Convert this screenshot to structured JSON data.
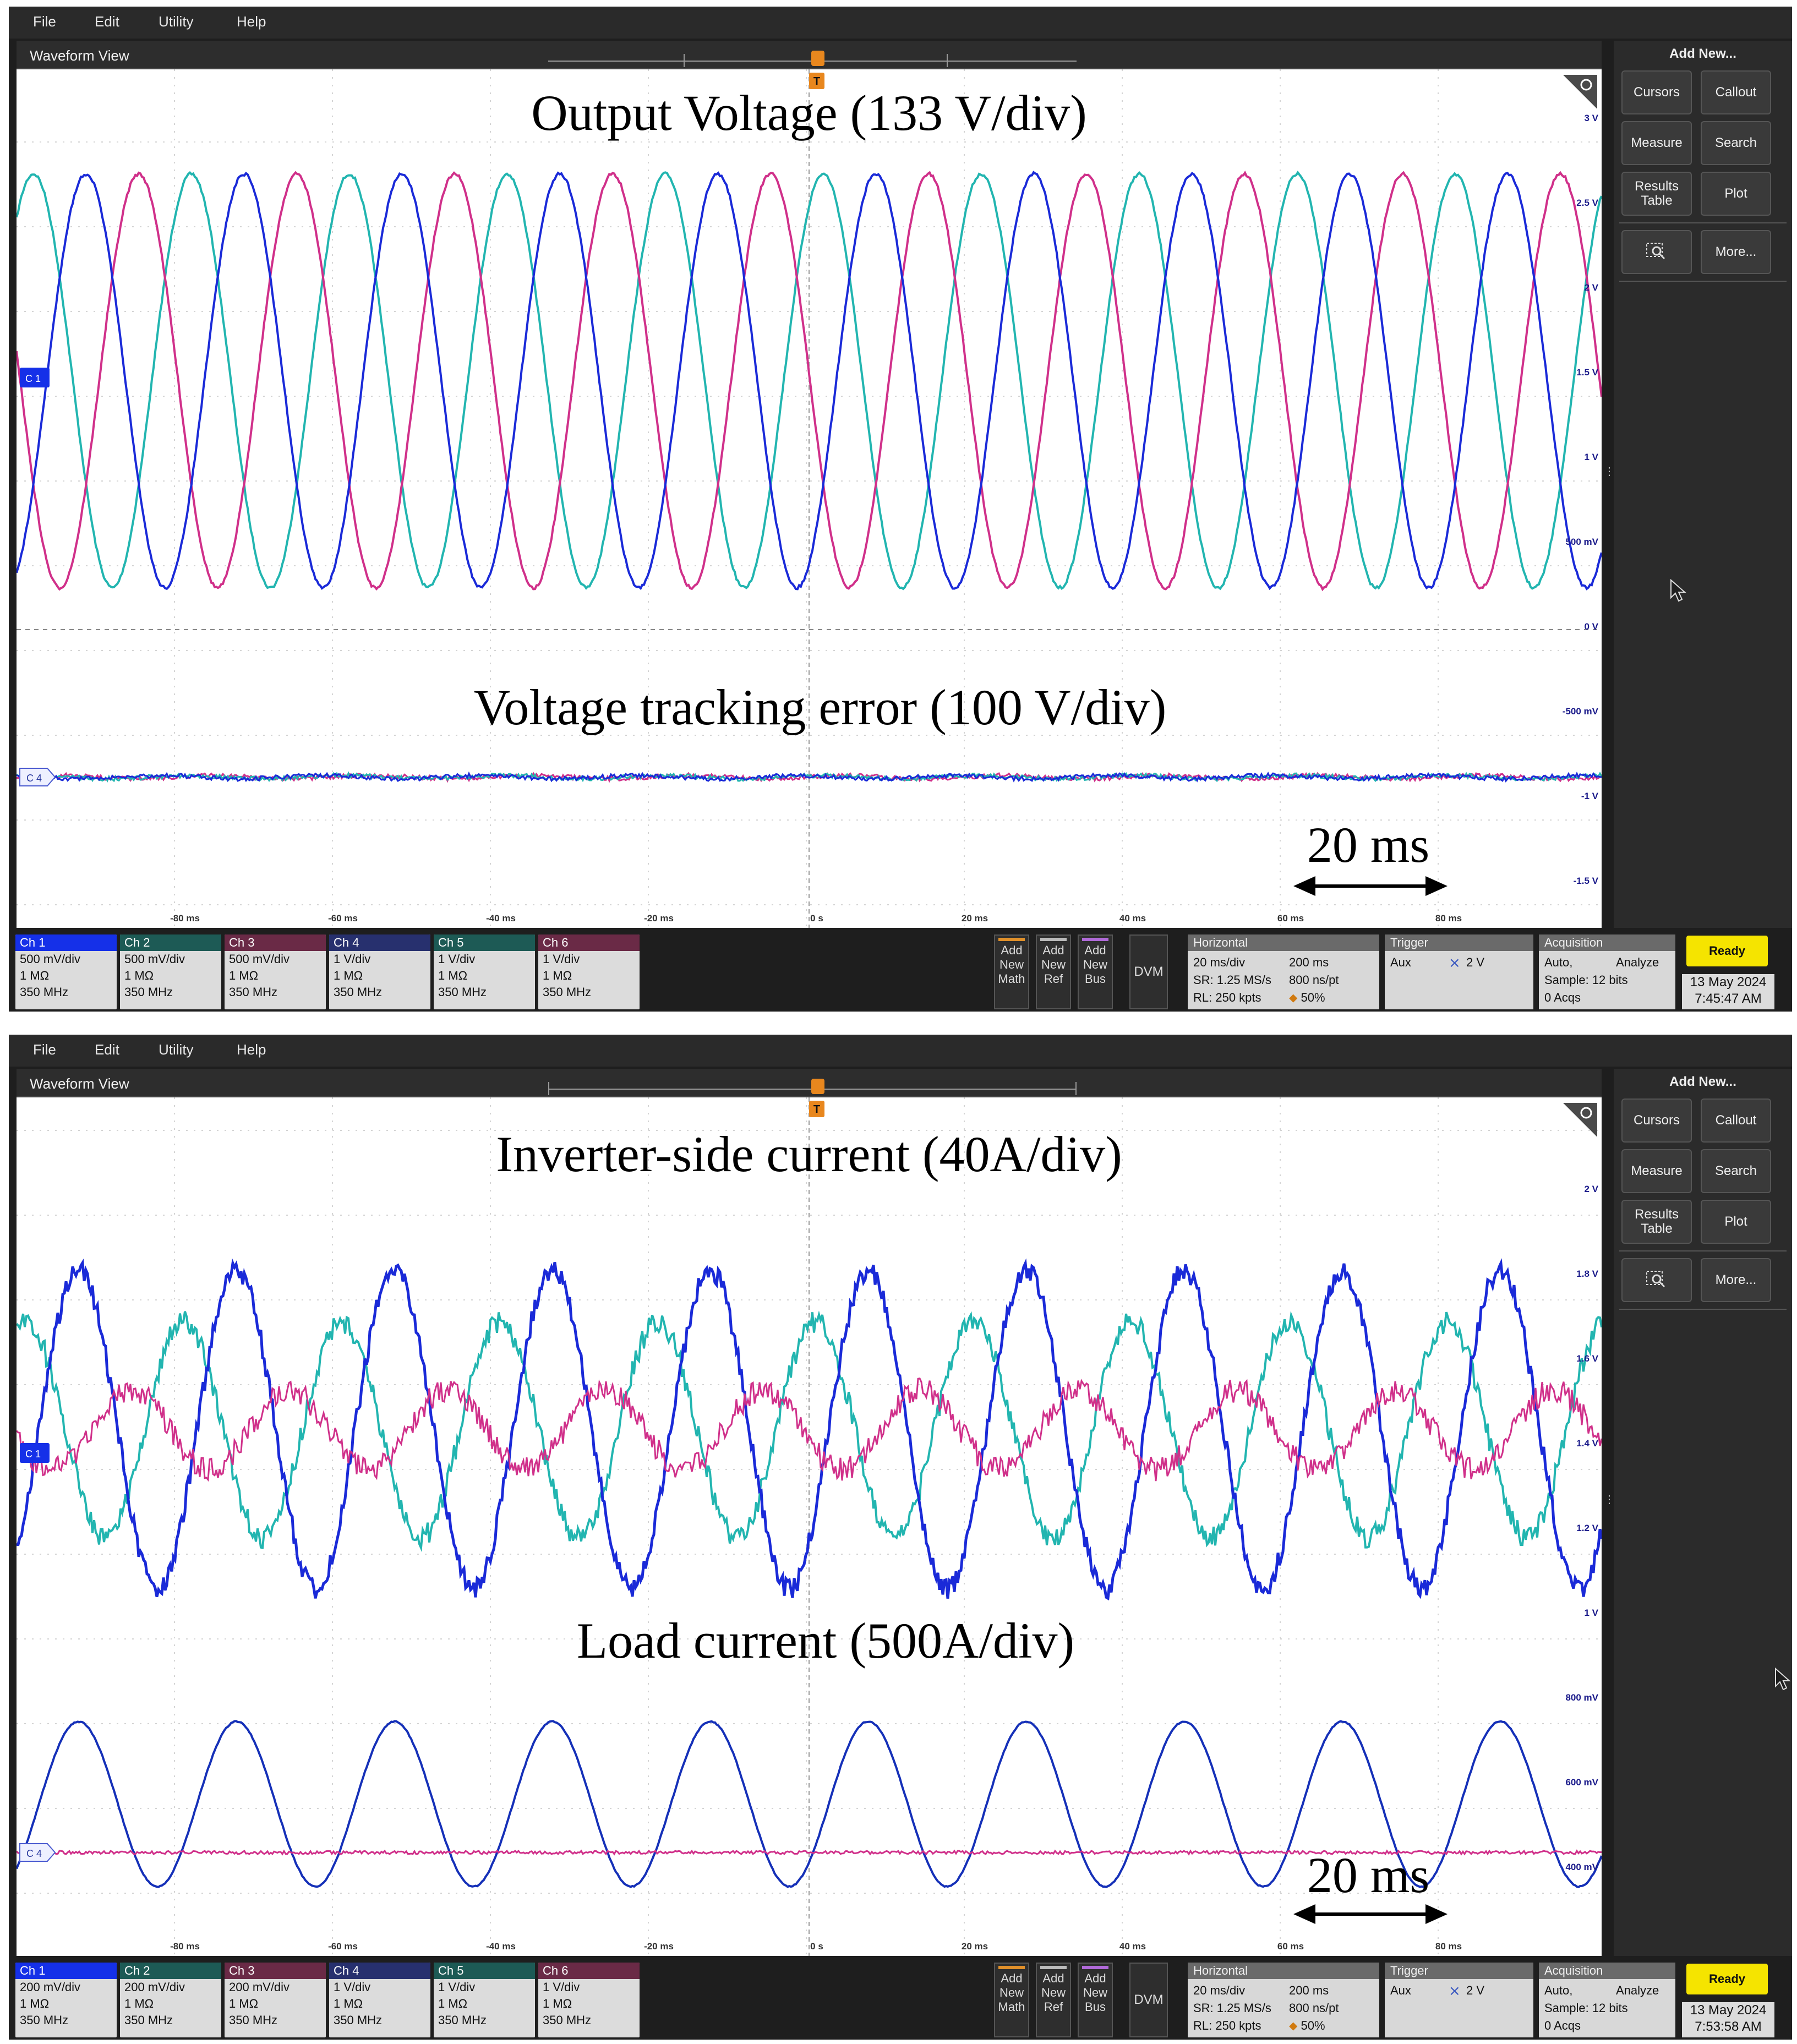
{
  "menu": [
    "File",
    "Edit",
    "Utility",
    "Help"
  ],
  "waveform_view_title": "Waveform View",
  "right_panel": {
    "title": "Add New...",
    "buttons": [
      "Cursors",
      "Callout",
      "Measure",
      "Search",
      "Results Table",
      "Plot",
      "More..."
    ],
    "zoom_icon": "zoom-box-icon"
  },
  "time_axis": [
    "-80 ms",
    "-60 ms",
    "-40 ms",
    "-20 ms",
    "0 s",
    "20 ms",
    "40 ms",
    "60 ms",
    "80 ms"
  ],
  "scale_bar_label": "20 ms",
  "add_buttons": [
    {
      "l1": "Add",
      "l2": "New",
      "l3": "Math",
      "color": "#e0902a"
    },
    {
      "l1": "Add",
      "l2": "New",
      "l3": "Ref",
      "color": "#bbbbbb"
    },
    {
      "l1": "Add",
      "l2": "New",
      "l3": "Bus",
      "color": "#b06ad8"
    }
  ],
  "dvm_label": "DVM",
  "horizontal": {
    "head": "Horizontal",
    "scale": "20 ms/div",
    "span": "200 ms",
    "sr": "SR: 1.25 MS/s",
    "pt": "800 ns/pt",
    "rl": "RL: 250 kpts",
    "pos": "50%"
  },
  "trigger": {
    "head": "Trigger",
    "source": "Aux",
    "level": "2 V"
  },
  "acquisition": {
    "head": "Acquisition",
    "mode": "Auto,",
    "analyze": "Analyze",
    "sample": "Sample: 12 bits",
    "acqs": "0 Acqs"
  },
  "status": "Ready",
  "channel_colors": [
    "#1530e8",
    "#1d9a8a",
    "#d23a7a",
    "#27306e",
    "#1a8a7a",
    "#c0307a"
  ],
  "screens": [
    {
      "top_title": "Output Voltage (133 V/div)",
      "bottom_title": "Voltage tracking error (100 V/div)",
      "scale_labels": [
        "3 V",
        "2.5 V",
        "2 V",
        "1.5 V",
        "1 V",
        "500 mV",
        "0 V",
        "-500 mV",
        "-1 V",
        "-1.5 V"
      ],
      "marker_top": "C 1",
      "marker_bot": "C 4",
      "channels": [
        {
          "head": "Ch 1",
          "scale": "500 mV/div",
          "imp": "1 MΩ",
          "bw": "350 MHz"
        },
        {
          "head": "Ch 2",
          "scale": "500 mV/div",
          "imp": "1 MΩ",
          "bw": "350 MHz"
        },
        {
          "head": "Ch 3",
          "scale": "500 mV/div",
          "imp": "1 MΩ",
          "bw": "350 MHz"
        },
        {
          "head": "Ch 4",
          "scale": "1 V/div",
          "imp": "1 MΩ",
          "bw": "350 MHz"
        },
        {
          "head": "Ch 5",
          "scale": "1 V/div",
          "imp": "1 MΩ",
          "bw": "350 MHz"
        },
        {
          "head": "Ch 6",
          "scale": "1 V/div",
          "imp": "1 MΩ",
          "bw": "350 MHz"
        }
      ],
      "date": "13 May 2024",
      "time": "7:45:47 AM"
    },
    {
      "top_title": "Inverter-side current (40A/div)",
      "bottom_title": "Load current (500A/div)",
      "scale_labels": [
        "2 V",
        "1.8 V",
        "1.6 V",
        "1.4 V",
        "1.2 V",
        "1 V",
        "800 mV",
        "600 mV",
        "400 mV"
      ],
      "marker_top": "C 1",
      "marker_bot": "C 4",
      "channels": [
        {
          "head": "Ch 1",
          "scale": "200 mV/div",
          "imp": "1 MΩ",
          "bw": "350 MHz"
        },
        {
          "head": "Ch 2",
          "scale": "200 mV/div",
          "imp": "1 MΩ",
          "bw": "350 MHz"
        },
        {
          "head": "Ch 3",
          "scale": "200 mV/div",
          "imp": "1 MΩ",
          "bw": "350 MHz"
        },
        {
          "head": "Ch 4",
          "scale": "1 V/div",
          "imp": "1 MΩ",
          "bw": "350 MHz"
        },
        {
          "head": "Ch 5",
          "scale": "1 V/div",
          "imp": "1 MΩ",
          "bw": "350 MHz"
        },
        {
          "head": "Ch 6",
          "scale": "1 V/div",
          "imp": "1 MΩ",
          "bw": "350 MHz"
        }
      ],
      "date": "13 May 2024",
      "time": "7:53:58 AM"
    }
  ]
}
